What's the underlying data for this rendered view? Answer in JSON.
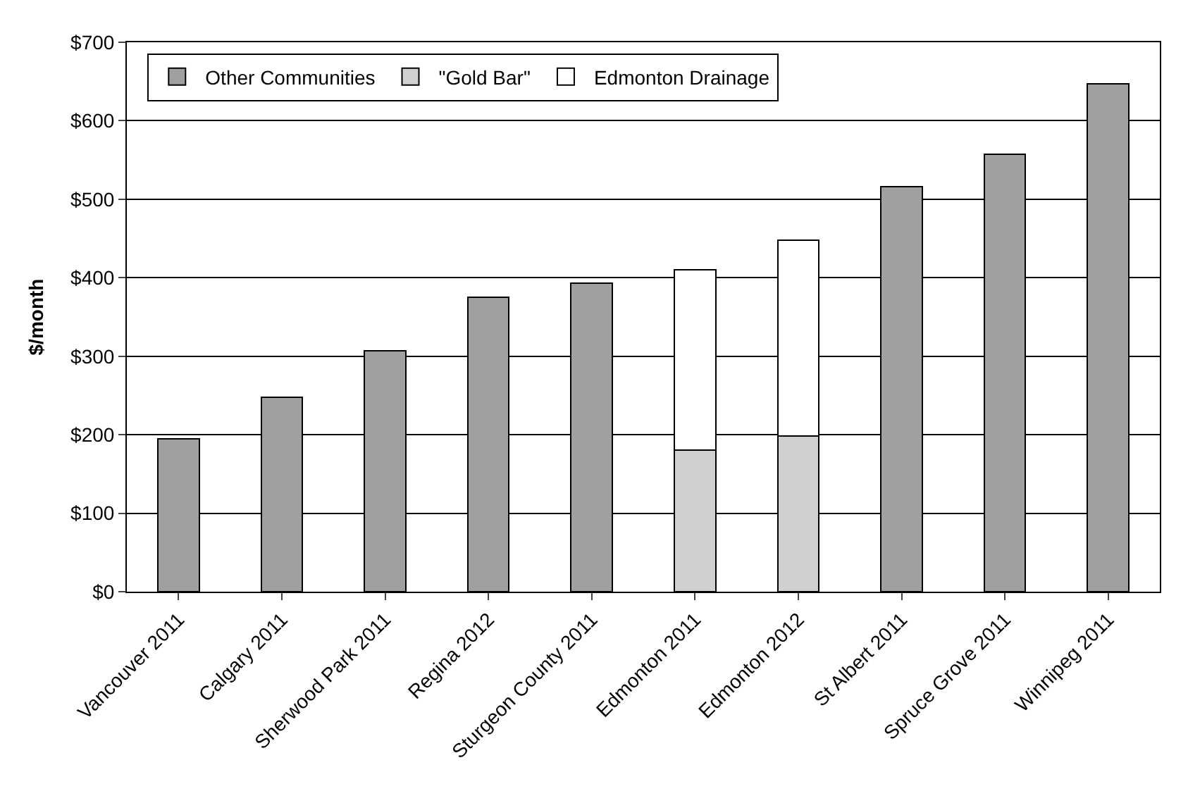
{
  "chart_data": {
    "type": "bar",
    "stacked": true,
    "ylabel": "$/month",
    "categories": [
      "Vancouver 2011",
      "Calgary 2011",
      "Sherwood Park 2011",
      "Regina 2012",
      "Sturgeon County 2011",
      "Edmonton 2011",
      "Edmonton 2012",
      "St Albert 2011",
      "Spruce Grove 2011",
      "Winnipeg 2011"
    ],
    "series": [
      {
        "name": "Other Communities",
        "color": "#a0a0a0",
        "values": [
          195,
          248,
          307,
          375,
          393,
          null,
          null,
          516,
          557,
          647
        ]
      },
      {
        "name": "\"Gold Bar\"",
        "color": "#d0d0d0",
        "values": [
          null,
          null,
          null,
          null,
          null,
          180,
          198,
          null,
          null,
          null
        ]
      },
      {
        "name": "Edmonton Drainage",
        "color": "#ffffff",
        "values": [
          null,
          null,
          null,
          null,
          null,
          230,
          250,
          null,
          null,
          null
        ]
      }
    ],
    "ylim": [
      0,
      700
    ],
    "yticks": [
      {
        "value": 0,
        "label": "$0"
      },
      {
        "value": 100,
        "label": "$100"
      },
      {
        "value": 200,
        "label": "$200"
      },
      {
        "value": 300,
        "label": "$300"
      },
      {
        "value": 400,
        "label": "$400"
      },
      {
        "value": 500,
        "label": "$500"
      },
      {
        "value": 600,
        "label": "$600"
      },
      {
        "value": 700,
        "label": "$700"
      }
    ],
    "grid": "y",
    "legend": "top left"
  }
}
